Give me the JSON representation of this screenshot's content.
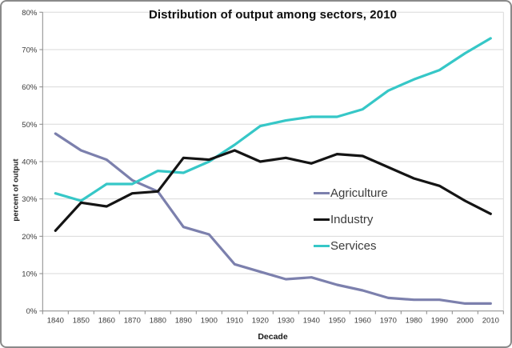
{
  "window": {
    "background": "#ffffff",
    "frame_border_color": "#8a8a8a"
  },
  "chart_data": {
    "type": "line",
    "title": "Distribution of output among sectors, 2010",
    "xlabel": "Decade",
    "ylabel": "percent of output",
    "categories": [
      "1840",
      "1850",
      "1860",
      "1870",
      "1880",
      "1890",
      "1900",
      "1910",
      "1920",
      "1930",
      "1940",
      "1950",
      "1960",
      "1970",
      "1980",
      "1990",
      "2000",
      "2010"
    ],
    "y_tick_labels": [
      "0%",
      "10%",
      "20%",
      "30%",
      "40%",
      "50%",
      "60%",
      "70%",
      "80%"
    ],
    "ylim": [
      0,
      80
    ],
    "grid": "horizontal",
    "gridline_color": "#d9d9d9",
    "axis_color": "#898989",
    "tick_label_color": "#3b3b3b",
    "legend_position": "center-right",
    "series": [
      {
        "name": "Agriculture",
        "color": "#7c80ad",
        "values": [
          47.5,
          43,
          40.5,
          35,
          32,
          22.5,
          20.5,
          12.5,
          10.5,
          8.5,
          9,
          7,
          5.5,
          3.5,
          3,
          3,
          2,
          2
        ]
      },
      {
        "name": "Industry",
        "color": "#141414",
        "values": [
          21.5,
          29,
          28,
          31.5,
          32,
          41,
          40.5,
          43,
          40,
          41,
          39.5,
          42,
          41.5,
          38.5,
          35.5,
          33.5,
          29.5,
          26
        ]
      },
      {
        "name": "Services",
        "color": "#36c7c7",
        "values": [
          31.5,
          29.5,
          34,
          34,
          37.5,
          37,
          40,
          44.5,
          49.5,
          51,
          52,
          52,
          54,
          59,
          62,
          64.5,
          69,
          73
        ]
      }
    ]
  }
}
